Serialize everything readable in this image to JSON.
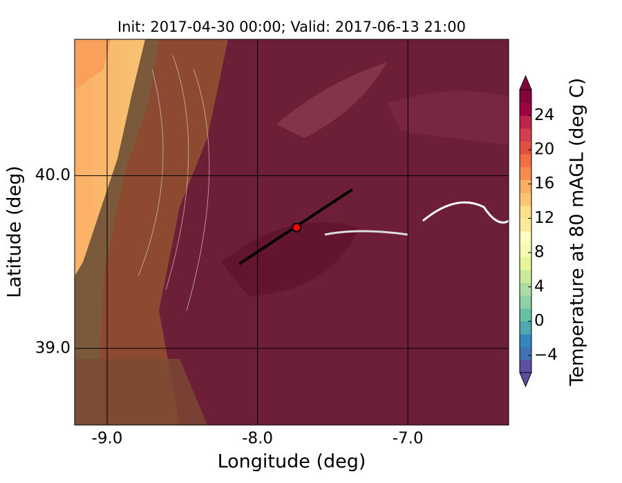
{
  "chart_data": {
    "type": "map",
    "title": "Init: 2017-04-30 00:00; Valid: 2017-06-13 21:00",
    "x_label": "Longitude (deg)",
    "y_label": "Latitude (deg)",
    "xlim": [
      -9.216,
      -6.33
    ],
    "ylim": [
      38.556,
      40.79
    ],
    "xticks": [
      {
        "value": -9,
        "label": "-9.0"
      },
      {
        "value": -8,
        "label": "-8.0"
      },
      {
        "value": -7,
        "label": "-7.0"
      }
    ],
    "yticks": [
      {
        "value": 39,
        "label": "39.0"
      },
      {
        "value": 40,
        "label": "40.0"
      }
    ],
    "grid": true,
    "marker": {
      "lon": -7.74,
      "lat": 39.7,
      "color": "#ff0000"
    },
    "transect": {
      "lon": [
        -8.12,
        -7.37
      ],
      "lat": [
        39.49,
        39.92
      ],
      "color": "#000000"
    },
    "colorbar": {
      "label": "Temperature at 80 mAGL (deg C)",
      "lim": [
        -6,
        27
      ],
      "ticks": [
        {
          "value": -4,
          "label": "−4"
        },
        0,
        4,
        8,
        12,
        16,
        20,
        24
      ],
      "colors": [
        "#5e4fa2",
        "#3f71b3",
        "#3288bd",
        "#4fa7b0",
        "#66c2a5",
        "#8ed1a4",
        "#abdda4",
        "#cbea9d",
        "#e6f598",
        "#f5fab3",
        "#ffffbf",
        "#fee99a",
        "#fee08b",
        "#fdc371",
        "#fdae61",
        "#f8894f",
        "#f46d43",
        "#e4503f",
        "#d53e4f",
        "#c0244a",
        "#9e0142",
        "#85023b"
      ]
    }
  }
}
